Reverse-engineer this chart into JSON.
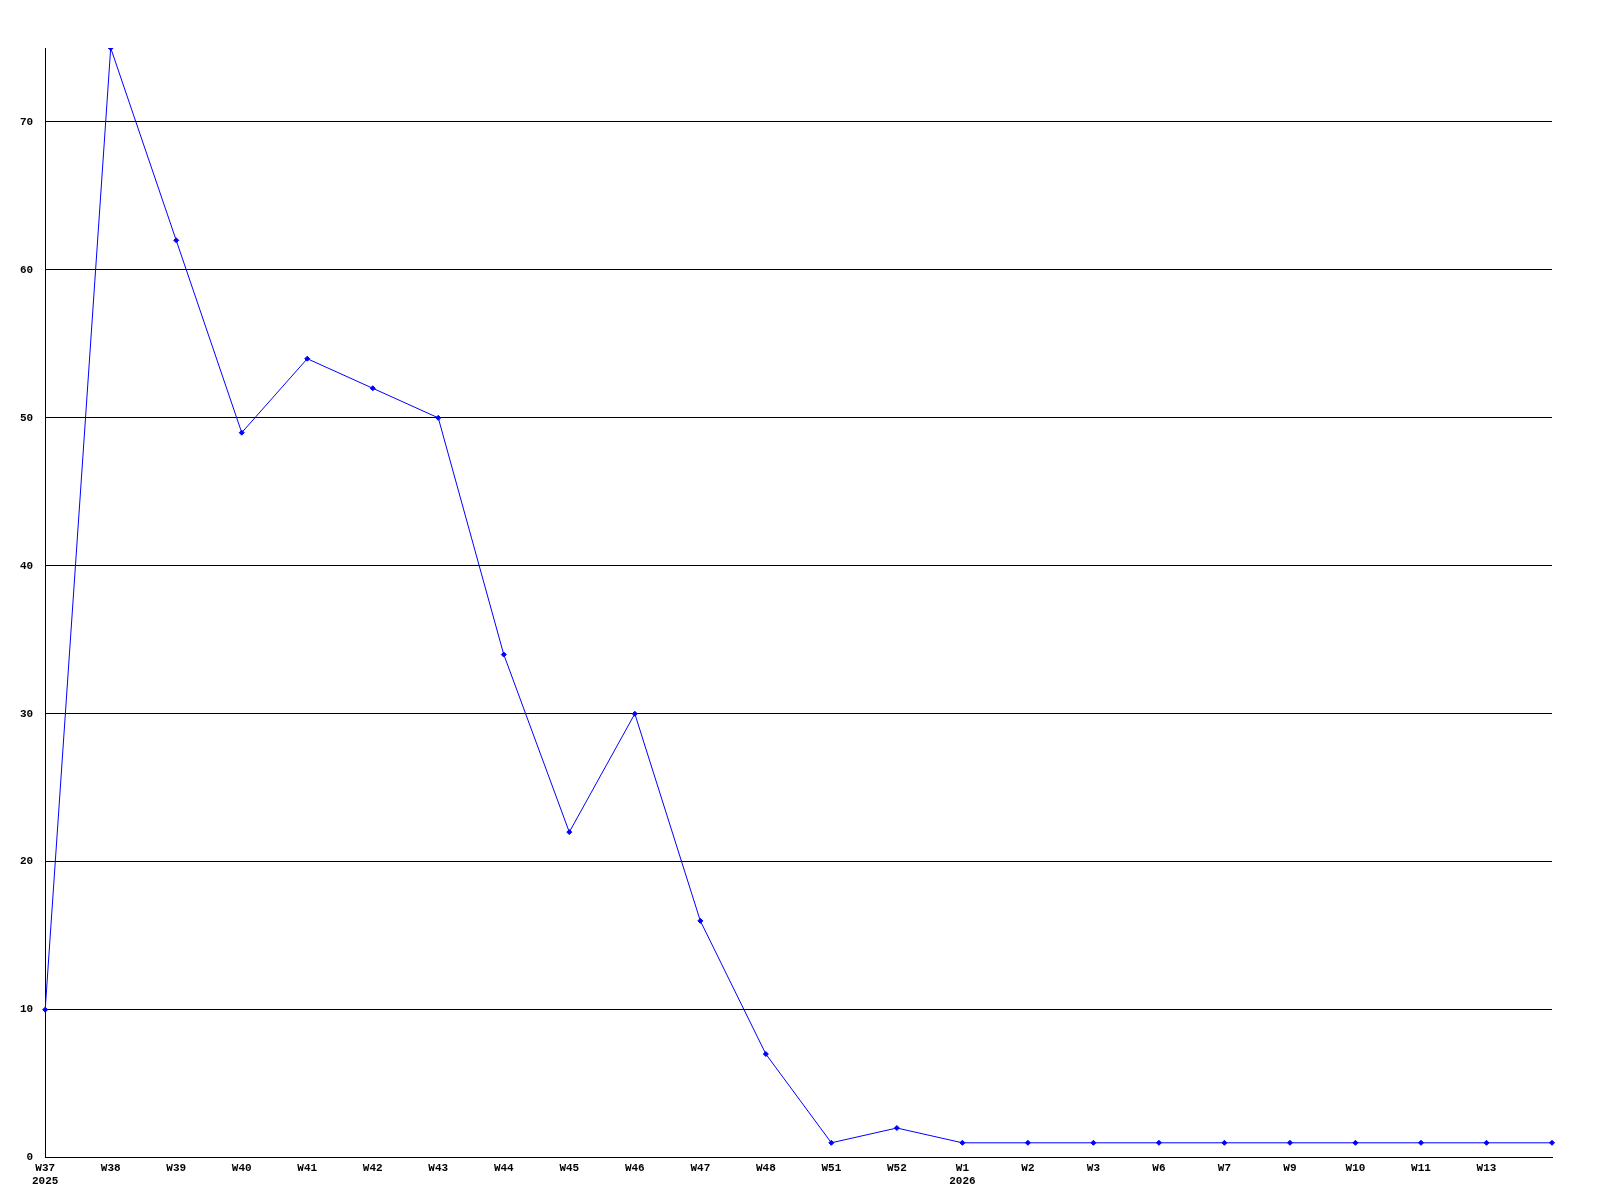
{
  "chart_data": {
    "type": "line",
    "categories": [
      "W37\n2025",
      "W38",
      "W39",
      "W40",
      "W41",
      "W42",
      "W43",
      "W44",
      "W45",
      "W46",
      "W47",
      "W48",
      "W51",
      "W52",
      "W1\n2026",
      "W2",
      "W3",
      "W6",
      "W7",
      "W9",
      "W10",
      "W11",
      "W13",
      null
    ],
    "series": [
      {
        "color": "#0000ff",
        "values": [
          10,
          75,
          62,
          49,
          54,
          52,
          50,
          34,
          22,
          30,
          16,
          7,
          1,
          2,
          1,
          1,
          1,
          1,
          1,
          1,
          1,
          1,
          1,
          1
        ]
      }
    ],
    "ylim": [
      0,
      75
    ],
    "yticks": [
      0,
      10,
      20,
      30,
      40,
      50,
      60,
      70
    ],
    "grid": "y",
    "marker": "diamond",
    "line_style": "solid",
    "legend": false
  }
}
